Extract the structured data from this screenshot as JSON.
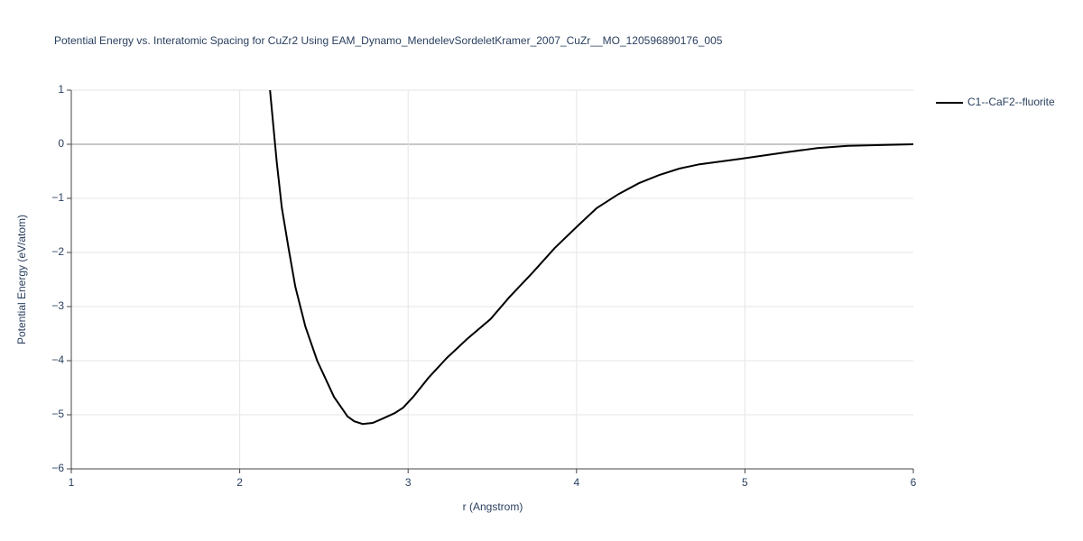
{
  "chart_data": {
    "type": "line",
    "title": "Potential Energy vs. Interatomic Spacing for CuZr2 Using EAM_Dynamo_MendelevSordeletKramer_2007_CuZr__MO_120596890176_005",
    "x_label": "r (Angstrom)",
    "y_label": "Potential Energy (eV/atom)",
    "x": [
      2.18,
      2.21,
      2.22,
      2.25,
      2.29,
      2.33,
      2.39,
      2.46,
      2.56,
      2.64,
      2.68,
      2.73,
      2.79,
      2.85,
      2.92,
      2.97,
      3.03,
      3.12,
      3.23,
      3.35,
      3.49,
      3.6,
      3.74,
      3.87,
      4.01,
      4.12,
      4.25,
      4.37,
      4.49,
      4.61,
      4.73,
      4.97,
      5.24,
      5.43,
      5.61,
      6.0
    ],
    "series": [
      {
        "name": "C1--CaF2--fluorite",
        "color": "#000000",
        "values": [
          1,
          0,
          -0.33,
          -1.17,
          -1.92,
          -2.63,
          -3.37,
          -4.0,
          -4.67,
          -5.03,
          -5.12,
          -5.17,
          -5.15,
          -5.07,
          -4.97,
          -4.87,
          -4.67,
          -4.32,
          -3.95,
          -3.6,
          -3.23,
          -2.83,
          -2.37,
          -1.92,
          -1.5,
          -1.18,
          -0.92,
          -0.72,
          -0.57,
          -0.45,
          -0.37,
          -0.27,
          -0.15,
          -0.07,
          -0.03,
          0.0
        ]
      }
    ],
    "xlim": [
      1,
      6
    ],
    "xticks": [
      1,
      2,
      3,
      4,
      5,
      6
    ],
    "ylim": [
      -6,
      1
    ],
    "yticks": [
      {
        "value": -6,
        "label": "−6"
      },
      {
        "value": -5,
        "label": "−5"
      },
      {
        "value": -4,
        "label": "−4"
      },
      {
        "value": -3,
        "label": "−3"
      },
      {
        "value": -2,
        "label": "−2"
      },
      {
        "value": -1,
        "label": "−1"
      },
      0,
      1
    ],
    "grid": true,
    "legend": "right"
  }
}
